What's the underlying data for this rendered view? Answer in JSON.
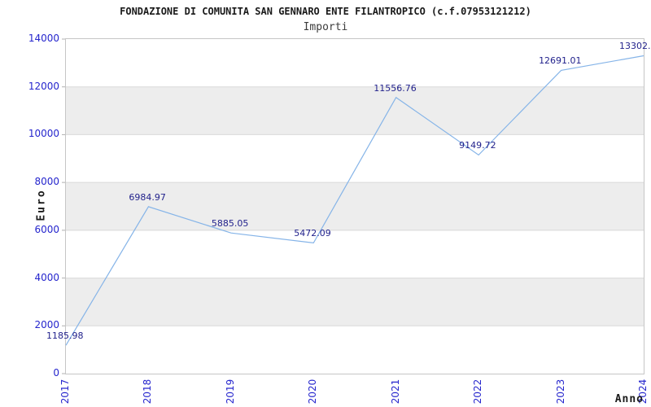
{
  "title": "FONDAZIONE DI COMUNITA SAN GENNARO ENTE FILANTROPICO (c.f.07953121212)",
  "subtitle": "Importi",
  "chart_data": {
    "type": "line",
    "title": "FONDAZIONE DI COMUNITA SAN GENNARO ENTE FILANTROPICO (c.f.07953121212)",
    "subtitle": "Importi",
    "xlabel": "Anno",
    "ylabel": "Euro",
    "categories": [
      "2017",
      "2018",
      "2019",
      "2020",
      "2021",
      "2022",
      "2023",
      "2024"
    ],
    "values": [
      1185.98,
      6984.97,
      5885.05,
      5472.09,
      11556.76,
      9149.72,
      12691.01,
      13302
    ],
    "point_labels": [
      "1185.98",
      "6984.97",
      "5885.05",
      "5472.09",
      "11556.76",
      "9149.72",
      "12691.01",
      "13302."
    ],
    "ylim": [
      0,
      14000
    ],
    "ytick_step": 2000,
    "yticks": [
      "0",
      "2000",
      "4000",
      "6000",
      "8000",
      "10000",
      "12000",
      "14000"
    ],
    "grid": "horizontal gridlines every 2000 with alternating shaded bands",
    "legend": "none",
    "colors": {
      "line": "#85b4e8",
      "point_label": "#22228c",
      "tick_label": "#2525cd",
      "axis_title": "#1a1a1a",
      "title": "#1a1a1a",
      "subtitle": "#3c3c3c",
      "band": "#ededed",
      "gridline": "#d9d9d9",
      "tick_mark": "#b0b0b0",
      "plot_border": "#c6c6c6",
      "background": "#ffffff"
    }
  }
}
